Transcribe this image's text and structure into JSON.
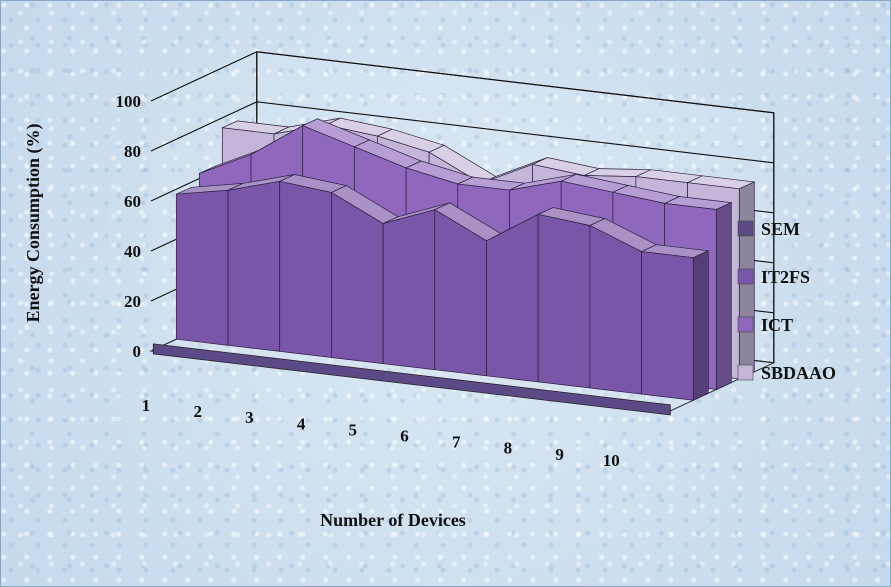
{
  "chart_data": {
    "type": "area",
    "view": "3d",
    "categories": [
      "1",
      "2",
      "3",
      "4",
      "5",
      "6",
      "7",
      "8",
      "9",
      "10"
    ],
    "xlabel": "Number of Devices",
    "ylabel": "Energy Consumption (%)",
    "ylim": [
      0,
      100
    ],
    "yticks": [
      "0",
      "20",
      "40",
      "60",
      "80",
      "100"
    ],
    "grid": true,
    "legend_position": "right",
    "series": [
      {
        "name": "SEM",
        "color": "#5b4a85",
        "values": [
          0,
          0,
          0,
          0,
          0,
          0,
          0,
          0,
          0,
          0
        ]
      },
      {
        "name": "IT2FS",
        "color": "#7a56a8",
        "values": [
          58,
          62,
          68,
          66,
          56,
          64,
          54,
          67,
          65,
          57
        ]
      },
      {
        "name": "ICT",
        "color": "#8f68bd",
        "values": [
          62,
          72,
          86,
          80,
          74,
          70,
          70,
          76,
          74,
          72
        ]
      },
      {
        "name": "SBDAAO",
        "color": "#c4b6d8",
        "values": [
          76,
          76,
          82,
          80,
          76,
          66,
          76,
          74,
          76,
          76
        ]
      }
    ]
  }
}
